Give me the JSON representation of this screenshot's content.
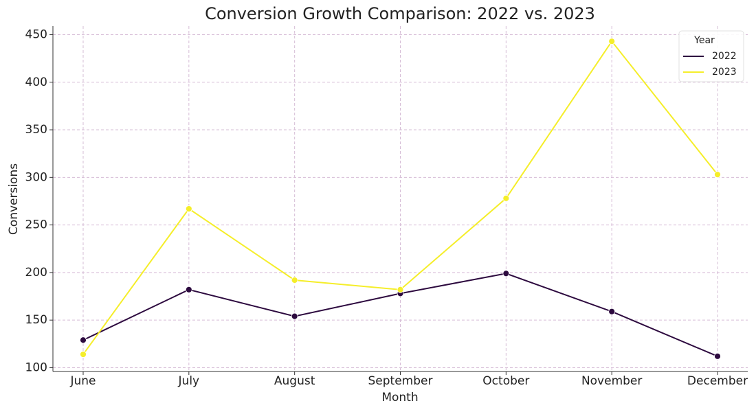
{
  "chart_data": {
    "type": "line",
    "title": "Conversion Growth Comparison: 2022 vs. 2023",
    "x_label": "Month",
    "y_label": "Conversions",
    "categories": [
      "June",
      "July",
      "August",
      "September",
      "October",
      "November",
      "December"
    ],
    "series": [
      {
        "name": "2022",
        "color": "#2d0a3f",
        "values": [
          129,
          182,
          154,
          178,
          199,
          159,
          112
        ]
      },
      {
        "name": "2023",
        "color": "#f5ee2a",
        "values": [
          114,
          267,
          192,
          182,
          278,
          443,
          303
        ]
      }
    ],
    "ylim": [
      96,
      459
    ],
    "yticks": [
      100,
      150,
      200,
      250,
      300,
      350,
      400,
      450
    ],
    "grid": true,
    "legend_title": "Year",
    "legend_position": "upper-right"
  }
}
